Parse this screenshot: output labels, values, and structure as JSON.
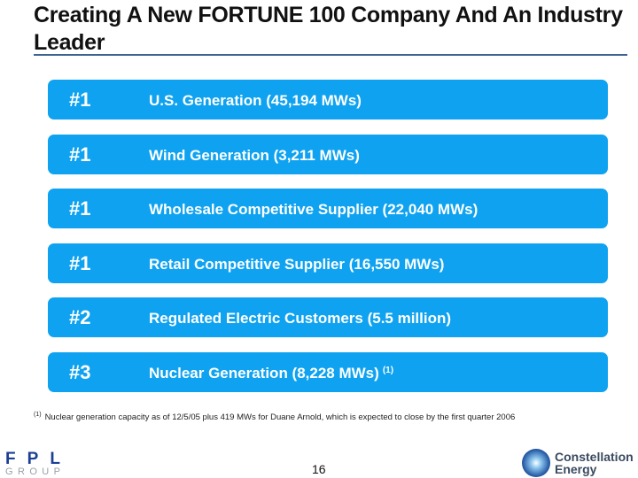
{
  "title": "Creating A New FORTUNE 100 Company And An Industry Leader",
  "items": [
    {
      "rank": "#1",
      "label": "U.S. Generation (45,194 MWs)",
      "note": ""
    },
    {
      "rank": "#1",
      "label": "Wind Generation (3,211 MWs)",
      "note": ""
    },
    {
      "rank": "#1",
      "label": "Wholesale Competitive Supplier (22,040 MWs)",
      "note": ""
    },
    {
      "rank": "#1",
      "label": "Retail Competitive Supplier (16,550 MWs)",
      "note": ""
    },
    {
      "rank": "#2",
      "label": "Regulated Electric Customers (5.5 million)",
      "note": ""
    },
    {
      "rank": "#3",
      "label": "Nuclear Generation (8,228 MWs)",
      "note": "(1)"
    }
  ],
  "footnote": {
    "marker": "(1)",
    "text": "Nuclear generation capacity as of 12/5/05 plus 419 MWs for Duane Arnold, which is expected to close by the first quarter 2006"
  },
  "page_number": "16",
  "logos": {
    "left": {
      "line1": "FPL",
      "line2": "GROUP"
    },
    "right": {
      "line1": "Constellation",
      "line2": "Energy"
    }
  },
  "colors": {
    "bar": "#0ea2f0",
    "rule": "#3d6490"
  }
}
